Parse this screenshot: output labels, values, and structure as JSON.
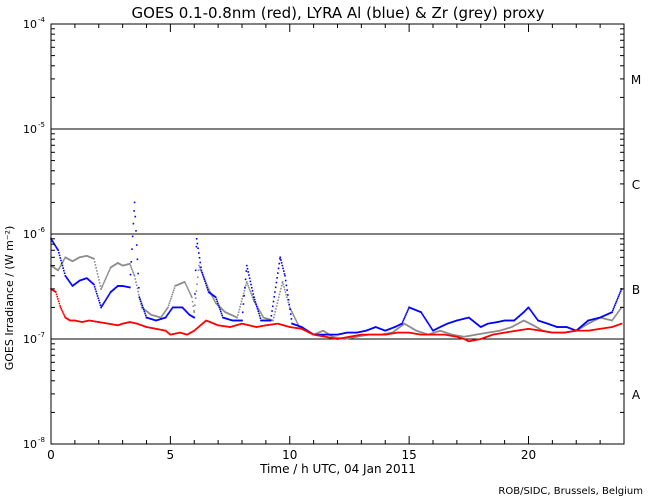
{
  "chart_data": {
    "type": "scatter",
    "title": "GOES 0.1-0.8nm (red), LYRA Al (blue) & Zr (grey) proxy",
    "xlabel": "Time / h UTC, 04 Jan 2011",
    "ylabel": "GOES Irradiance / (W m⁻²)",
    "credit": "ROB/SIDC, Brussels, Belgium",
    "xlim": [
      0,
      24
    ],
    "ylim": [
      1e-08,
      0.0001
    ],
    "yscale": "log",
    "x_ticks": [
      0,
      5,
      10,
      15,
      20
    ],
    "y_ticks": [
      {
        "value": 1e-08,
        "base": "10",
        "exp": "-8"
      },
      {
        "value": 1e-07,
        "base": "10",
        "exp": "-7"
      },
      {
        "value": 1e-06,
        "base": "10",
        "exp": "-6"
      },
      {
        "value": 1e-05,
        "base": "10",
        "exp": "-5"
      },
      {
        "value": 0.0001,
        "base": "10",
        "exp": "-4"
      }
    ],
    "flare_class_lines": [
      1e-07,
      1e-06,
      1e-05
    ],
    "flare_classes": [
      {
        "label": "A",
        "value": 3e-08
      },
      {
        "label": "B",
        "value": 3e-07
      },
      {
        "label": "C",
        "value": 3e-06
      },
      {
        "label": "M",
        "value": 3e-05
      }
    ],
    "series": [
      {
        "name": "GOES 0.1-0.8nm",
        "color": "#ff0000",
        "x": [
          0.0,
          0.2,
          0.4,
          0.6,
          0.8,
          1.0,
          1.3,
          1.6,
          2.0,
          2.4,
          2.8,
          3.0,
          3.3,
          3.6,
          4.0,
          4.4,
          4.8,
          5.0,
          5.4,
          5.7,
          6.0,
          6.5,
          7.0,
          7.5,
          8.0,
          8.3,
          8.6,
          9.0,
          9.5,
          10.0,
          10.5,
          11.0,
          11.5,
          12.0,
          12.5,
          13.0,
          13.5,
          14.0,
          14.5,
          15.0,
          15.5,
          16.0,
          16.5,
          17.0,
          17.3,
          17.5,
          18.0,
          18.5,
          19.0,
          19.5,
          20.0,
          20.5,
          21.0,
          21.5,
          22.0,
          22.5,
          23.0,
          23.5,
          23.9
        ],
        "y": [
          3e-07,
          2.8e-07,
          2e-07,
          1.6e-07,
          1.5e-07,
          1.5e-07,
          1.45e-07,
          1.5e-07,
          1.45e-07,
          1.4e-07,
          1.35e-07,
          1.4e-07,
          1.45e-07,
          1.4e-07,
          1.3e-07,
          1.25e-07,
          1.2e-07,
          1.1e-07,
          1.15e-07,
          1.1e-07,
          1.2e-07,
          1.5e-07,
          1.35e-07,
          1.3e-07,
          1.4e-07,
          1.35e-07,
          1.3e-07,
          1.35e-07,
          1.4e-07,
          1.3e-07,
          1.25e-07,
          1.1e-07,
          1.05e-07,
          1e-07,
          1.05e-07,
          1.1e-07,
          1.1e-07,
          1.1e-07,
          1.15e-07,
          1.15e-07,
          1.1e-07,
          1.1e-07,
          1.1e-07,
          1.05e-07,
          1e-07,
          9.5e-08,
          1e-07,
          1.1e-07,
          1.15e-07,
          1.2e-07,
          1.25e-07,
          1.2e-07,
          1.15e-07,
          1.15e-07,
          1.2e-07,
          1.2e-07,
          1.25e-07,
          1.3e-07,
          1.4e-07
        ]
      },
      {
        "name": "LYRA Al proxy",
        "color": "#0000ff",
        "x": [
          0.0,
          0.3,
          0.6,
          0.9,
          1.2,
          1.5,
          1.8,
          2.1,
          2.5,
          2.8,
          3.0,
          3.3,
          3.5,
          3.7,
          4.0,
          4.4,
          4.8,
          5.1,
          5.5,
          5.8,
          6.0,
          6.1,
          6.3,
          6.6,
          6.9,
          7.2,
          7.6,
          8.0,
          8.2,
          8.5,
          8.8,
          9.2,
          9.6,
          9.8,
          10.1,
          10.5,
          11.0,
          11.5,
          12.0,
          12.4,
          12.8,
          13.2,
          13.6,
          14.0,
          14.4,
          14.7,
          15.0,
          15.5,
          16.0,
          16.3,
          16.6,
          17.0,
          17.5,
          18.0,
          18.3,
          18.7,
          19.0,
          19.4,
          19.8,
          20.0,
          20.4,
          20.8,
          21.2,
          21.6,
          22.0,
          22.5,
          23.0,
          23.5,
          23.9
        ],
        "y": [
          9e-07,
          7e-07,
          4e-07,
          3.2e-07,
          3.6e-07,
          3.8e-07,
          3.3e-07,
          2e-07,
          2.8e-07,
          3.2e-07,
          3.2e-07,
          3.1e-07,
          2e-06,
          2.5e-07,
          1.6e-07,
          1.5e-07,
          1.6e-07,
          2e-07,
          2e-07,
          1.7e-07,
          1.6e-07,
          9e-07,
          4.5e-07,
          2.8e-07,
          2.5e-07,
          1.6e-07,
          1.5e-07,
          1.5e-07,
          5e-07,
          2.5e-07,
          1.5e-07,
          1.5e-07,
          6e-07,
          4e-07,
          1.4e-07,
          1.3e-07,
          1.1e-07,
          1.1e-07,
          1.1e-07,
          1.15e-07,
          1.15e-07,
          1.2e-07,
          1.3e-07,
          1.2e-07,
          1.3e-07,
          1.4e-07,
          2e-07,
          1.8e-07,
          1.2e-07,
          1.3e-07,
          1.4e-07,
          1.5e-07,
          1.6e-07,
          1.3e-07,
          1.4e-07,
          1.45e-07,
          1.5e-07,
          1.5e-07,
          1.8e-07,
          2e-07,
          1.5e-07,
          1.4e-07,
          1.3e-07,
          1.3e-07,
          1.2e-07,
          1.5e-07,
          1.6e-07,
          1.8e-07,
          3e-07
        ]
      },
      {
        "name": "LYRA Zr proxy",
        "color": "#8c8c8c",
        "x": [
          0.0,
          0.3,
          0.6,
          0.9,
          1.2,
          1.5,
          1.8,
          2.1,
          2.5,
          2.8,
          3.0,
          3.3,
          3.5,
          3.8,
          4.2,
          4.6,
          4.9,
          5.2,
          5.6,
          5.9,
          6.0,
          6.2,
          6.6,
          6.9,
          7.3,
          7.8,
          8.2,
          8.5,
          8.9,
          9.3,
          9.7,
          10.0,
          10.4,
          11.0,
          11.4,
          11.8,
          12.3,
          12.8,
          13.3,
          13.8,
          14.3,
          14.8,
          15.3,
          15.8,
          16.3,
          16.8,
          17.3,
          17.8,
          18.3,
          18.8,
          19.3,
          19.8,
          20.2,
          20.6,
          21.0,
          21.5,
          22.0,
          22.5,
          23.0,
          23.5,
          23.9
        ],
        "y": [
          5e-07,
          4.5e-07,
          6e-07,
          5.5e-07,
          6e-07,
          6.2e-07,
          5.8e-07,
          3e-07,
          4.8e-07,
          5.3e-07,
          5e-07,
          5.2e-07,
          4e-07,
          2e-07,
          1.7e-07,
          1.6e-07,
          2e-07,
          3.2e-07,
          3.5e-07,
          2.5e-07,
          1.8e-07,
          5e-07,
          3e-07,
          2.2e-07,
          1.8e-07,
          1.6e-07,
          3.5e-07,
          2.3e-07,
          1.6e-07,
          1.5e-07,
          3.5e-07,
          2e-07,
          1.3e-07,
          1.1e-07,
          1.2e-07,
          1.05e-07,
          1e-07,
          1.05e-07,
          1.1e-07,
          1.1e-07,
          1.15e-07,
          1.4e-07,
          1.2e-07,
          1.1e-07,
          1.2e-07,
          1.1e-07,
          1.05e-07,
          1.1e-07,
          1.15e-07,
          1.2e-07,
          1.3e-07,
          1.5e-07,
          1.35e-07,
          1.2e-07,
          1.15e-07,
          1.15e-07,
          1.2e-07,
          1.4e-07,
          1.6e-07,
          1.5e-07,
          2e-07
        ]
      }
    ]
  }
}
